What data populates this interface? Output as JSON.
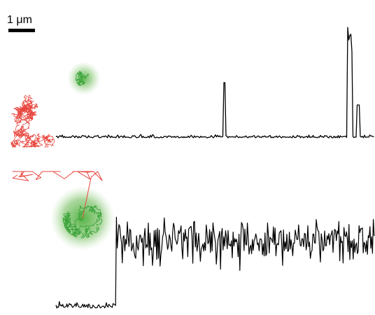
{
  "scale_bar": {
    "label": "1 μm"
  }
}
